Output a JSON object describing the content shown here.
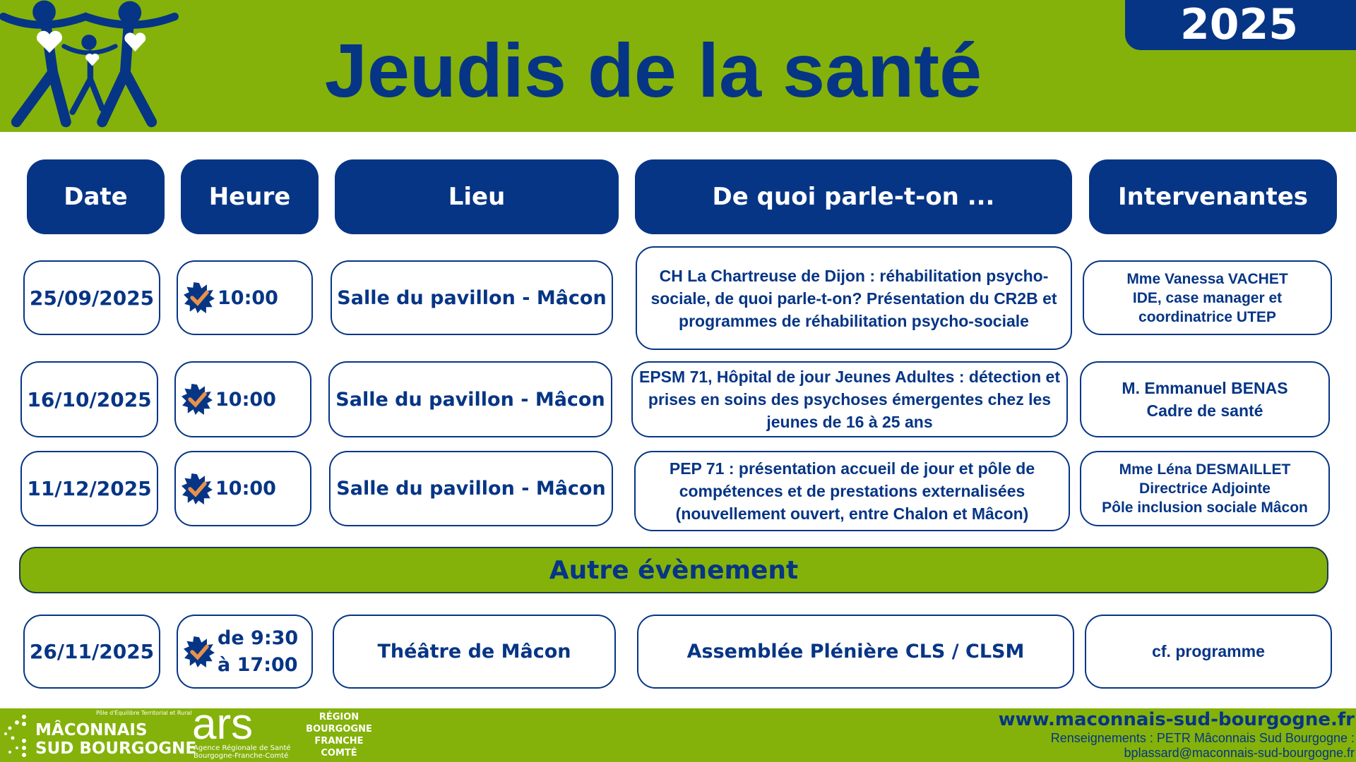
{
  "header": {
    "title": "Jeudis de la santé",
    "year": "2025"
  },
  "columns": [
    "Date",
    "Heure",
    "Lieu",
    "De quoi parle-t-on ...",
    "Intervenantes"
  ],
  "rows": [
    {
      "date": "25/09/2025",
      "time": "10:00",
      "place": "Salle du pavillon - Mâcon",
      "topic": "CH La Chartreuse de Dijon : réhabilitation psycho-sociale, de quoi parle-t-on? Présentation du CR2B et programmes de réhabilitation psycho-sociale",
      "speaker": "Mme Vanessa VACHET\nIDE, case manager  et coordinatrice UTEP"
    },
    {
      "date": "16/10/2025",
      "time": "10:00",
      "place": "Salle du pavillon - Mâcon",
      "topic": "EPSM 71, Hôpital de jour Jeunes Adultes : détection et prises en soins des psychoses émergentes chez les jeunes de 16 à 25 ans",
      "speaker": "M. Emmanuel BENAS\nCadre de santé"
    },
    {
      "date": "11/12/2025",
      "time": "10:00",
      "place": "Salle du pavillon - Mâcon",
      "topic": "PEP 71 : présentation accueil de jour et pôle de compétences et de prestations externalisées (nouvellement ouvert, entre Chalon et Mâcon)",
      "speaker": "Mme Léna DESMAILLET\nDirectrice Adjointe\nPôle inclusion sociale Mâcon"
    }
  ],
  "other_event": {
    "title": "Autre évènement",
    "date": "26/11/2025",
    "time_start": "de 9:30",
    "time_end": "à 17:00",
    "place": "Théâtre de Mâcon",
    "topic": "Assemblée Plénière CLS / CLSM",
    "speaker": "cf. programme"
  },
  "footer": {
    "petr_tagline": "Pôle d'Équilibre Territorial et Rural",
    "petr_line1": "MÂCONNAIS",
    "petr_line2": "SUD BOURGOGNE",
    "ars_logo": "ars",
    "ars_name": "Agence Régionale de Santé",
    "ars_region": "Bourgogne-Franche-Comté",
    "region_lines": [
      "RÉGION",
      "BOURGOGNE",
      "FRANCHE",
      "COMTÉ"
    ],
    "website": "www.maconnais-sud-bourgogne.fr",
    "info": "Renseignements : PETR Mâconnais Sud Bourgogne :",
    "email": "bplassard@maconnais-sud-bourgogne.fr"
  },
  "colors": {
    "green": "#84b20a",
    "blue": "#063585",
    "check": "#e8914a"
  },
  "icons": [
    "family-hearts-logo",
    "check-badge-icon"
  ]
}
